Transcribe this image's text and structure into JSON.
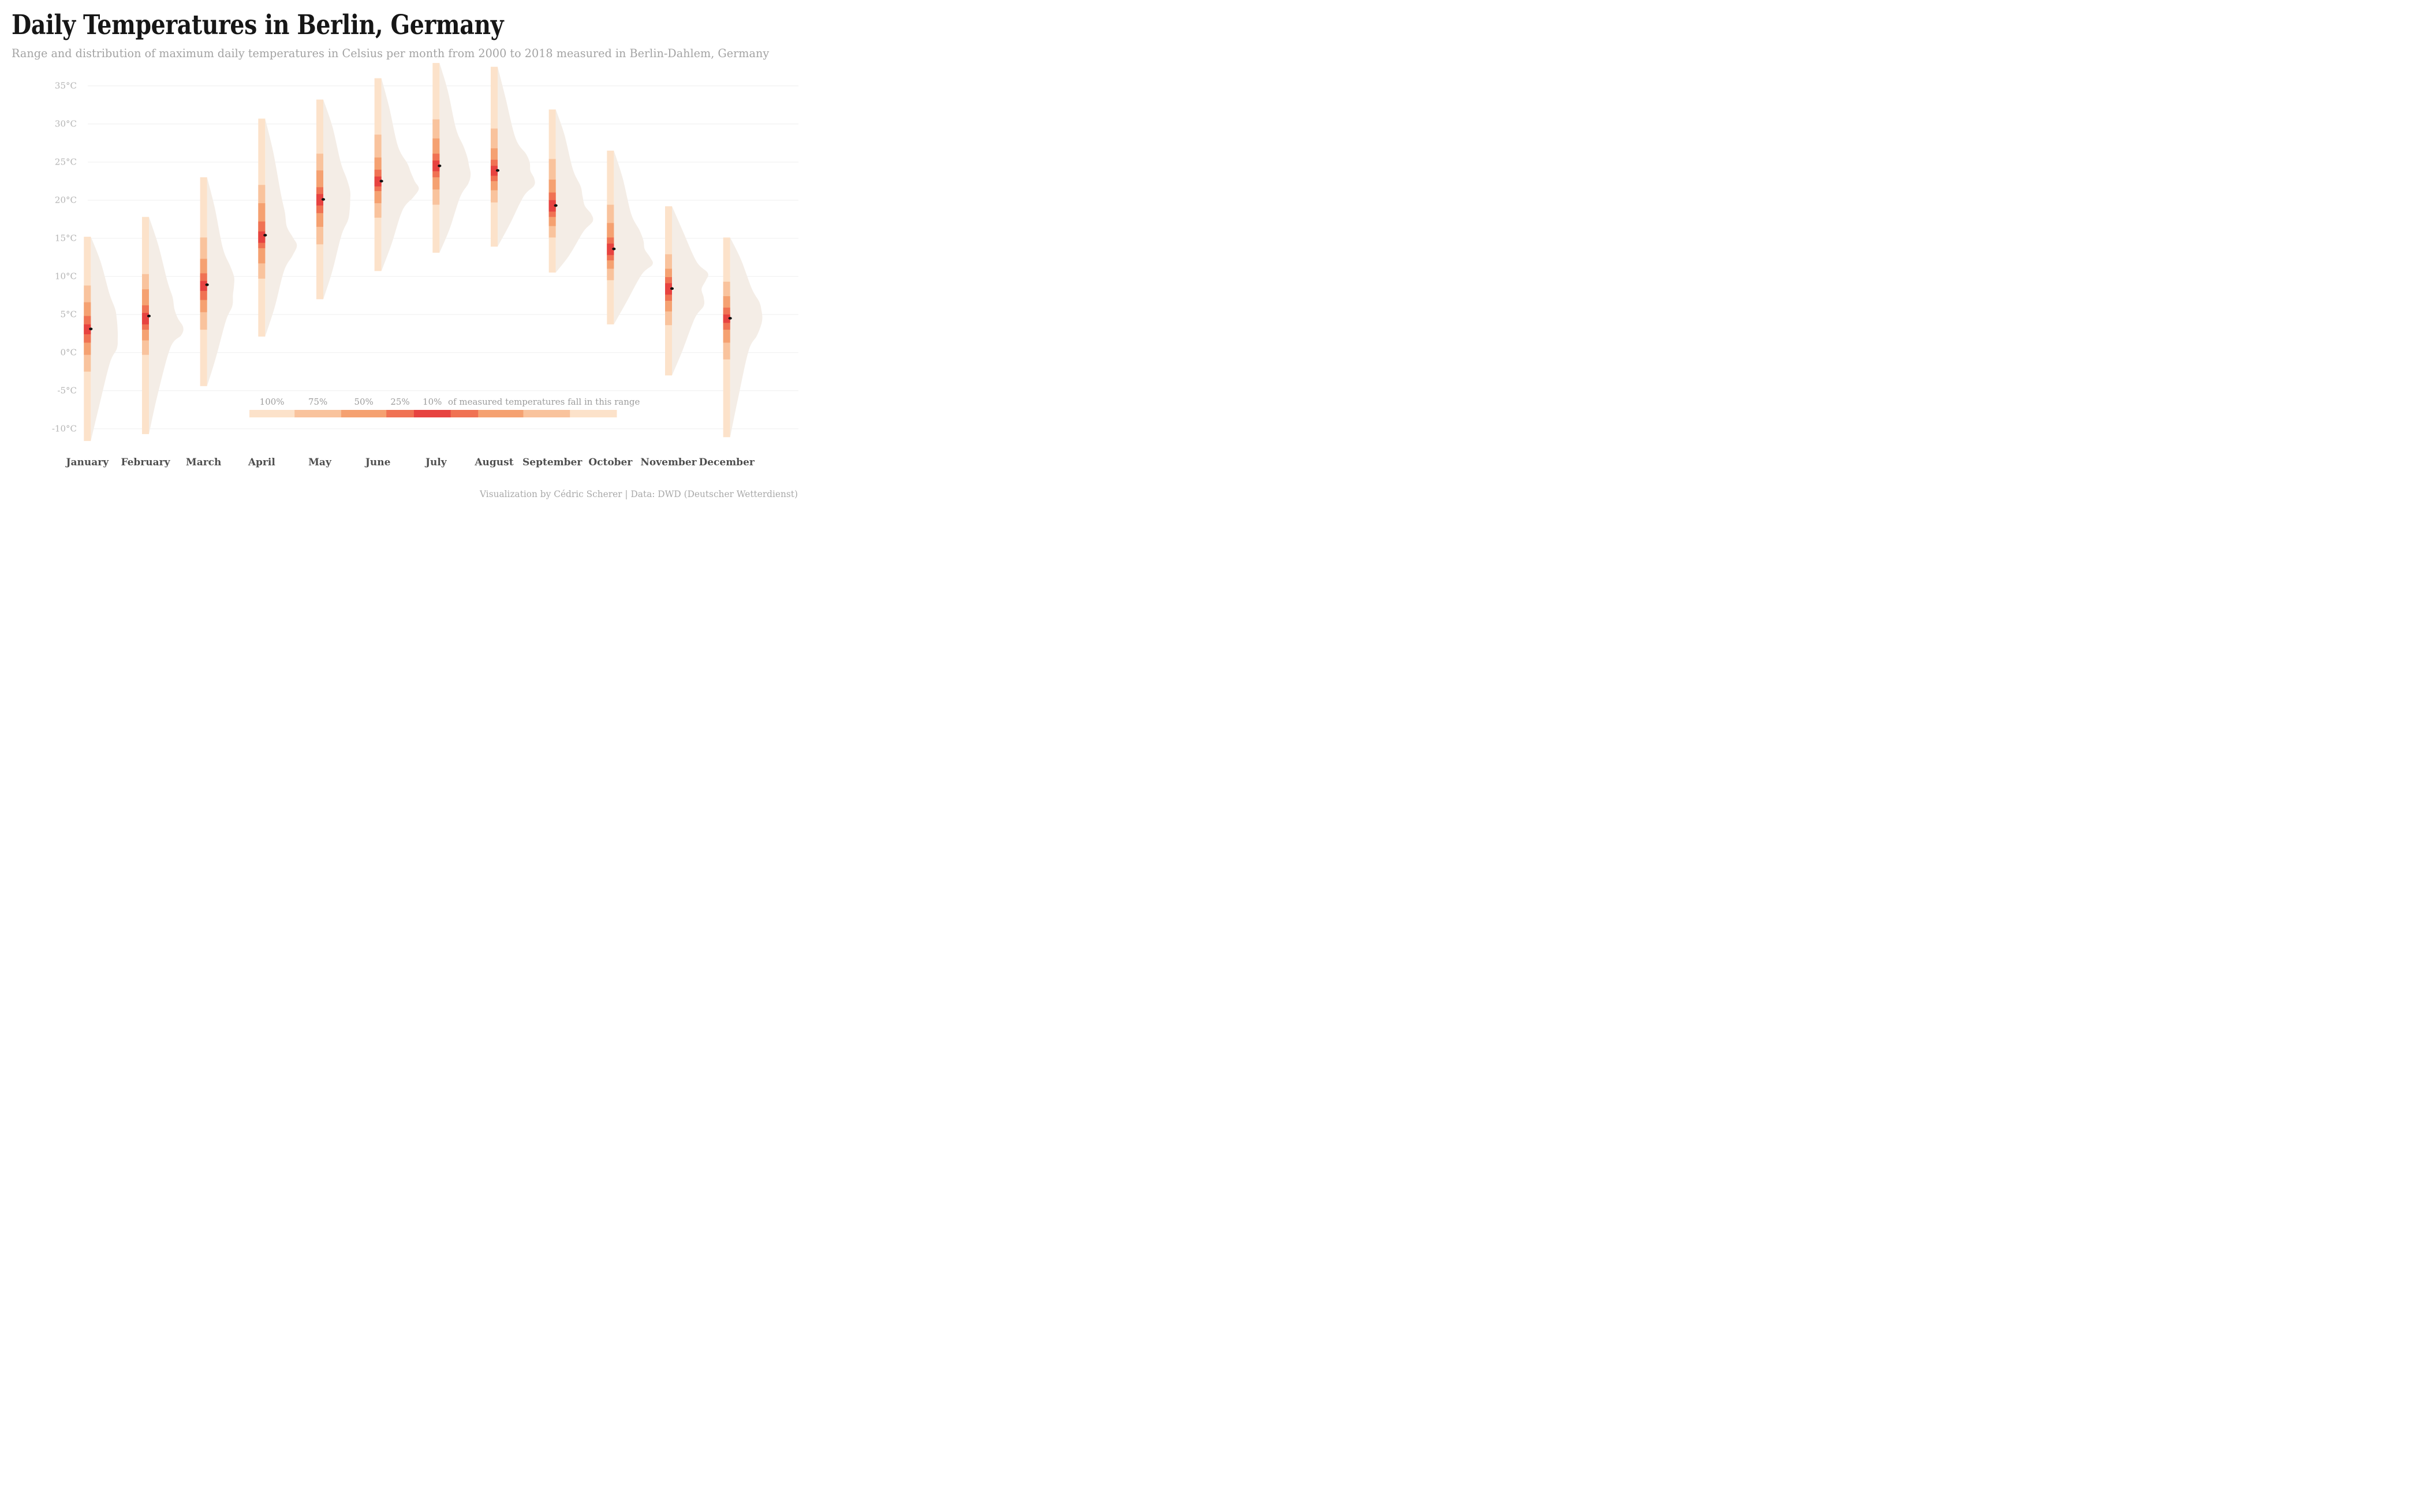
{
  "title": "Daily Temperatures in Berlin, Germany",
  "subtitle": "Range and distribution of maximum daily temperatures in Celsius per month from 2000 to 2018 measured in Berlin-Dahlem, Germany",
  "footer": "Visualization by Cédric Scherer  |  Data: DWD (Deutscher Wetterdienst)",
  "colors": {
    "background": "#ffffff",
    "gridline": "#efefef",
    "band_100": "#fce2ca",
    "band_75": "#f9c39d",
    "band_50": "#f5a171",
    "band_25": "#f07253",
    "band_10": "#e74340",
    "violin": "#f4ede6",
    "median_dot": "#111111",
    "title_text": "#161616",
    "subtitle_text": "#a3a3a3",
    "axis_text": "#b4b4b4",
    "month_text": "#4f4f4f",
    "legend_text": "#9c9c9c",
    "footer_text": "#a9a9a9"
  },
  "y_axis": {
    "unit": "°C",
    "ticks": [
      35,
      30,
      25,
      20,
      15,
      10,
      5,
      0,
      -5,
      -10
    ]
  },
  "legend": {
    "labels": [
      "100%",
      "75%",
      "50%",
      "25%",
      "10%"
    ],
    "sentence": "of measured temperatures fall in this range",
    "segment_keys": [
      "band_100",
      "band_75",
      "band_50",
      "band_25",
      "band_10",
      "band_25",
      "band_50",
      "band_75",
      "band_100"
    ],
    "segment_width_pct": [
      12.3,
      12.7,
      12.3,
      7.5,
      10.0,
      7.5,
      12.3,
      12.7,
      12.7
    ]
  },
  "chart_data": {
    "type": "interval-violin",
    "description": "Per month: min/max (100% range), percentile band edges p12.5/p87.5 (75% band), p25/p75 (50% band), p37.5/p62.5 (25% band), p45/p55 (10% band), and median of daily maximum temperature in °C",
    "ylim": [
      -12.5,
      38.5
    ],
    "months": [
      {
        "label": "January",
        "min": -11.6,
        "p125": -2.5,
        "p25": -0.3,
        "p375": 1.3,
        "p45": 2.4,
        "median": 3.1,
        "p55": 3.7,
        "p625": 4.8,
        "p75": 6.6,
        "p875": 8.8,
        "max": 15.2
      },
      {
        "label": "February",
        "min": -10.7,
        "p125": -0.3,
        "p25": 1.6,
        "p375": 3.0,
        "p45": 3.7,
        "median": 4.8,
        "p55": 5.2,
        "p625": 6.2,
        "p75": 8.3,
        "p875": 10.3,
        "max": 17.8
      },
      {
        "label": "March",
        "min": -4.4,
        "p125": 3.0,
        "p25": 5.3,
        "p375": 6.9,
        "p45": 8.1,
        "median": 8.9,
        "p55": 9.4,
        "p625": 10.4,
        "p75": 12.3,
        "p875": 15.1,
        "max": 23.0
      },
      {
        "label": "April",
        "min": 2.1,
        "p125": 9.7,
        "p25": 11.7,
        "p375": 13.7,
        "p45": 14.4,
        "median": 15.4,
        "p55": 15.9,
        "p625": 17.2,
        "p75": 19.6,
        "p875": 22.0,
        "max": 30.7
      },
      {
        "label": "May",
        "min": 7.0,
        "p125": 14.2,
        "p25": 16.5,
        "p375": 18.3,
        "p45": 19.3,
        "median": 20.1,
        "p55": 20.8,
        "p625": 21.7,
        "p75": 23.9,
        "p875": 26.1,
        "max": 33.2
      },
      {
        "label": "June",
        "min": 10.7,
        "p125": 17.7,
        "p25": 19.6,
        "p375": 21.2,
        "p45": 21.8,
        "median": 22.5,
        "p55": 23.1,
        "p625": 24.0,
        "p75": 25.6,
        "p875": 28.6,
        "max": 36.0
      },
      {
        "label": "July",
        "min": 13.1,
        "p125": 19.4,
        "p25": 21.4,
        "p375": 23.0,
        "p45": 23.8,
        "median": 24.5,
        "p55": 25.2,
        "p625": 26.1,
        "p75": 28.1,
        "p875": 30.6,
        "max": 38.0
      },
      {
        "label": "August",
        "min": 13.9,
        "p125": 19.7,
        "p25": 21.3,
        "p375": 22.5,
        "p45": 23.2,
        "median": 23.9,
        "p55": 24.5,
        "p625": 25.3,
        "p75": 26.8,
        "p875": 29.4,
        "max": 37.5
      },
      {
        "label": "September",
        "min": 10.5,
        "p125": 15.1,
        "p25": 16.6,
        "p375": 17.8,
        "p45": 18.5,
        "median": 19.3,
        "p55": 20.0,
        "p625": 21.0,
        "p75": 22.7,
        "p875": 25.4,
        "max": 31.9
      },
      {
        "label": "October",
        "min": 3.7,
        "p125": 9.5,
        "p25": 11.0,
        "p375": 12.1,
        "p45": 12.8,
        "median": 13.6,
        "p55": 14.3,
        "p625": 15.1,
        "p75": 17.0,
        "p875": 19.4,
        "max": 26.5
      },
      {
        "label": "November",
        "min": -3.0,
        "p125": 3.6,
        "p25": 5.4,
        "p375": 6.8,
        "p45": 7.6,
        "median": 8.4,
        "p55": 9.1,
        "p625": 9.9,
        "p75": 11.0,
        "p875": 12.9,
        "max": 19.2
      },
      {
        "label": "December",
        "min": -11.1,
        "p125": -0.9,
        "p25": 1.3,
        "p375": 3.0,
        "p45": 3.9,
        "median": 4.5,
        "p55": 5.0,
        "p625": 5.9,
        "p75": 7.4,
        "p875": 9.3,
        "max": 15.1
      }
    ]
  }
}
